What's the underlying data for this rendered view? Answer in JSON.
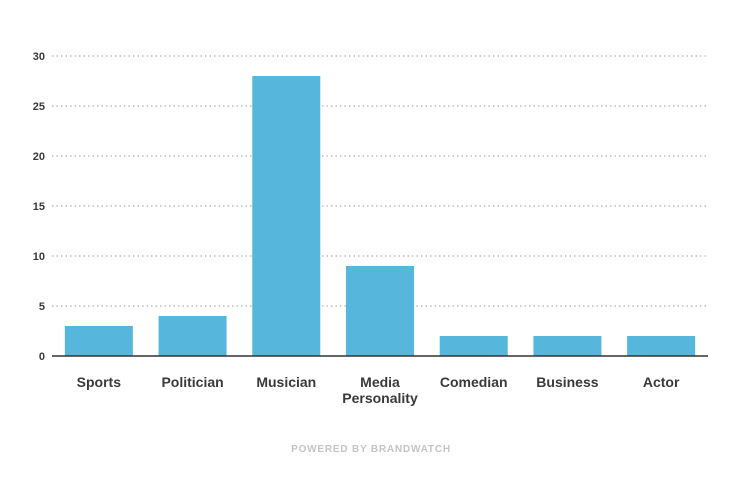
{
  "chart_data": {
    "type": "bar",
    "title": "",
    "xlabel": "",
    "ylabel": "",
    "categories": [
      [
        "Sports"
      ],
      [
        "Politician"
      ],
      [
        "Musician"
      ],
      [
        "Media",
        "Personality"
      ],
      [
        "Comedian"
      ],
      [
        "Business"
      ],
      [
        "Actor"
      ]
    ],
    "values": [
      3,
      4,
      28,
      9,
      2,
      2,
      2
    ],
    "ylim": [
      0,
      30
    ],
    "yticks": [
      0,
      5,
      10,
      15,
      20,
      25,
      30
    ],
    "grid": true,
    "bar_color": "#56b6dc"
  },
  "footer": {
    "text": "POWERED BY BRANDWATCH"
  }
}
